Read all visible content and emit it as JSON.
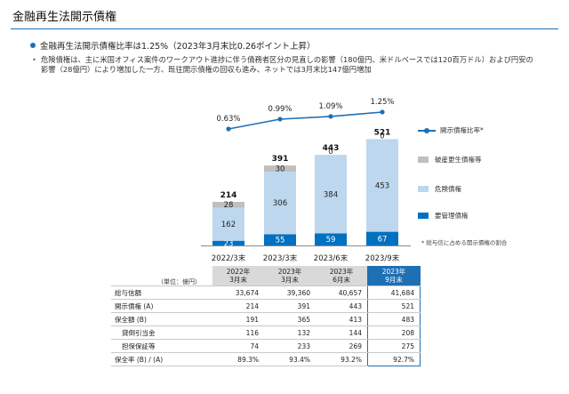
{
  "title": "金融再生法開示債権",
  "bullet_main": "金融再生法開示債権比率は1.25%（2023年3月末比0.26ポイント上昇）",
  "bullet_sub": "危険債権は、主に米国オフィス案件のワークアウト進捗に伴う債務者区分の見直しの影響（180億円、米ドルベースでは120百万ドル）および円安の影響（28億円）により増加した一方、既往開示債権の回収も進み、ネットでは3月末比147億円増加",
  "colors": {
    "accent": "#1f6fb4",
    "kiken": "#bdd7ee",
    "hasan": "#bfbfbf",
    "yokanri": "#0070c0"
  },
  "chart_data": {
    "type": "bar",
    "stacked": true,
    "categories": [
      "2022/3末",
      "2023/3末",
      "2023/6末",
      "2023/9末"
    ],
    "series": [
      {
        "name": "要管理債権",
        "values": [
          23,
          55,
          59,
          67
        ]
      },
      {
        "name": "危険債権",
        "values": [
          162,
          306,
          384,
          453
        ]
      },
      {
        "name": "破産更生債権等",
        "values": [
          28,
          30,
          0,
          0
        ]
      }
    ],
    "totals": [
      "214",
      "391",
      "443",
      "521"
    ],
    "ratio_series": {
      "name": "開示債権比率",
      "values": [
        0.63,
        0.99,
        1.09,
        1.25
      ],
      "labels": [
        "0.63%",
        "0.99%",
        "1.09%",
        "1.25%"
      ]
    },
    "legend": [
      "開示債権比率*",
      "破産更生債権等",
      "危険債権",
      "要管理債権"
    ],
    "legend_placement": "right",
    "note": "* 総与信に占める開示債権の割合",
    "grid": false
  },
  "table": {
    "unit": "（単位：億円）",
    "headers": [
      [
        "2022年",
        "3月末"
      ],
      [
        "2023年",
        "3月末"
      ],
      [
        "2023年",
        "6月末"
      ],
      [
        "2023年",
        "9月末"
      ]
    ],
    "rows": [
      {
        "label": "総与信額",
        "indent": false,
        "values": [
          "33,674",
          "39,360",
          "40,657",
          "41,684"
        ]
      },
      {
        "label": "開示債権 (A)",
        "indent": false,
        "values": [
          "214",
          "391",
          "443",
          "521"
        ]
      },
      {
        "label": "保全額 (B)",
        "indent": false,
        "values": [
          "191",
          "365",
          "413",
          "483"
        ]
      },
      {
        "label": "貸倒引当金",
        "indent": true,
        "values": [
          "116",
          "132",
          "144",
          "208"
        ]
      },
      {
        "label": "担保保証等",
        "indent": true,
        "values": [
          "74",
          "233",
          "269",
          "275"
        ]
      },
      {
        "label": "保全率 (B) / (A)",
        "indent": false,
        "values": [
          "89.3%",
          "93.4%",
          "93.2%",
          "92.7%"
        ]
      }
    ]
  }
}
